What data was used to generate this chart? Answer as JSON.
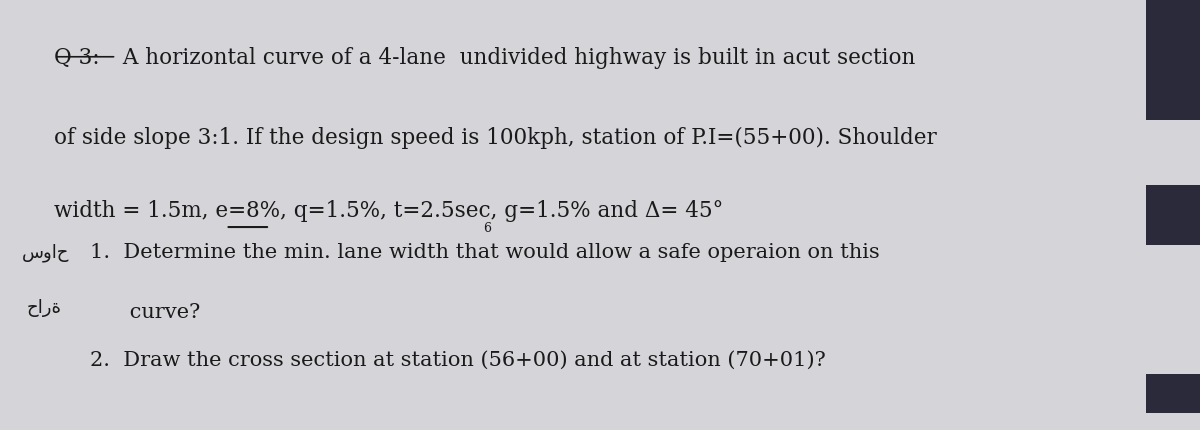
{
  "background_color": "#d5d5d9",
  "right_bar_color": "#2a2a3a",
  "title_label": "Q 3:",
  "line1_suffix": " A horizontal curve of a 4-lane  undivided highway is built in acut section",
  "line2": "of side slope 3:1. If the design speed is 100kph, station of P.I=(55+00). Shoulder",
  "line3": "width = 1.5m, e=8%, q=1.5%, t=2.5sec, g=1.5% and Δ= 45°",
  "item1_text": "1.  Determine the min. lane width that would allow a safe operaion on this",
  "item1_cont": "      curve?",
  "item2_text": "2.  Draw the cross section at station (56+00) and at station (70+01)?",
  "arabic_text1": "سواح",
  "arabic_text2": "حارة",
  "font_size_main": 15.5,
  "font_size_items": 15.0,
  "text_color": "#1a1a1a"
}
